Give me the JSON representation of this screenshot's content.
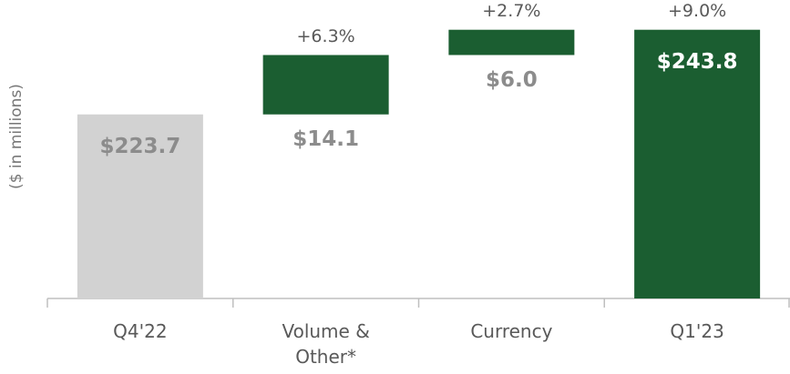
{
  "chart_data": {
    "type": "waterfall",
    "y_axis_label": "($ in millions)",
    "categories": [
      "Q4'22",
      "Volume & Other*",
      "Currency",
      "Q1'23"
    ],
    "bar_kinds": [
      "total",
      "delta",
      "delta",
      "total"
    ],
    "values": [
      223.7,
      14.1,
      6.0,
      243.8
    ],
    "value_labels": [
      "$223.7",
      "$14.1",
      "$6.0",
      "$243.8"
    ],
    "percent_labels": [
      null,
      "+6.3%",
      "+2.7%",
      "+9.0%"
    ],
    "colors": [
      "#d2d2d2",
      "#1b5e31",
      "#1b5e31",
      "#1b5e31"
    ],
    "label_colors": [
      "#8c8c8c",
      "#8c8c8c",
      "#8c8c8c",
      "#ffffff"
    ],
    "ylim": [
      180,
      250
    ]
  }
}
